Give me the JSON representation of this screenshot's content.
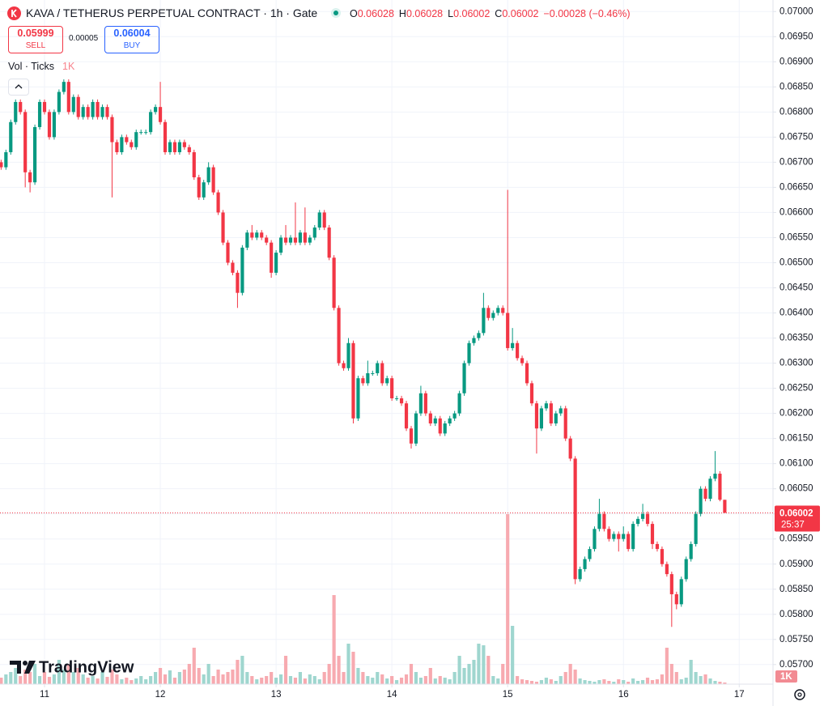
{
  "header": {
    "symbol": "KAVA / TETHERUS PERPETUAL CONTRACT · 1h · Gate",
    "ohlc": [
      {
        "label": "O",
        "value": "0.06028"
      },
      {
        "label": "H",
        "value": "0.06028"
      },
      {
        "label": "L",
        "value": "0.06002"
      },
      {
        "label": "C",
        "value": "0.06002"
      }
    ],
    "change": "−0.00028 (−0.46%)"
  },
  "trade": {
    "sell_price": "0.05999",
    "sell_label": "SELL",
    "spread": "0.00005",
    "buy_price": "0.06004",
    "buy_label": "BUY"
  },
  "indicator": {
    "name": "Vol · Ticks",
    "value": "1K"
  },
  "watermark": "TradingView",
  "chart_data": {
    "type": "candlestick",
    "up_color": "#089981",
    "down_color": "#f23645",
    "volume_up_color": "#9fd6cf",
    "volume_down_color": "#f7aab0",
    "grid": true,
    "x": [
      -9,
      -8,
      -7,
      -6,
      -5,
      -4,
      -3,
      -2,
      -1,
      0,
      1,
      2,
      3,
      4,
      5,
      6,
      7,
      8,
      9,
      10,
      11,
      12,
      13,
      14,
      15,
      16,
      17,
      18,
      19,
      20,
      21,
      22,
      23,
      24,
      25,
      26,
      27,
      28,
      29,
      30,
      31,
      32,
      33,
      34,
      35,
      36,
      37,
      38,
      39,
      40,
      41,
      42,
      43,
      44,
      45,
      46,
      47,
      48,
      49,
      50,
      51,
      52,
      53,
      54,
      55,
      56,
      57,
      58,
      59,
      60,
      61,
      62,
      63,
      64,
      65,
      66,
      67,
      68,
      69,
      70,
      71,
      72,
      73,
      74,
      75,
      76,
      77,
      78,
      79,
      80,
      81,
      82,
      83,
      84,
      85,
      86,
      87,
      88,
      89,
      90,
      91,
      92,
      93,
      94,
      95,
      96,
      97,
      98,
      99,
      100,
      101,
      102,
      103,
      104,
      105,
      106,
      107,
      108,
      109,
      110,
      111,
      112,
      113,
      114,
      115,
      116,
      117,
      118,
      119,
      120,
      121,
      122,
      123,
      124,
      125,
      126,
      127,
      128,
      129,
      130,
      131,
      132,
      133,
      134,
      135,
      136,
      137,
      138,
      139,
      140,
      141
    ],
    "open": [
      0.067,
      0.0669,
      0.0672,
      0.0678,
      0.0682,
      0.068,
      0.0668,
      0.0666,
      0.0677,
      0.0682,
      0.068,
      0.0675,
      0.068,
      0.0684,
      0.0686,
      0.068,
      0.0683,
      0.0679,
      0.0681,
      0.0679,
      0.0682,
      0.0679,
      0.0681,
      0.0679,
      0.0674,
      0.0672,
      0.0675,
      0.0674,
      0.0673,
      0.0676,
      0.0676,
      0.0676,
      0.068,
      0.0681,
      0.0678,
      0.0672,
      0.0674,
      0.0672,
      0.0674,
      0.0673,
      0.0672,
      0.0667,
      0.0663,
      0.0666,
      0.0669,
      0.0664,
      0.066,
      0.0654,
      0.065,
      0.0648,
      0.0644,
      0.0653,
      0.0656,
      0.0655,
      0.0656,
      0.0655,
      0.0654,
      0.0648,
      0.0652,
      0.0655,
      0.0654,
      0.0655,
      0.0654,
      0.0656,
      0.0654,
      0.0655,
      0.0657,
      0.066,
      0.0657,
      0.0651,
      0.0641,
      0.063,
      0.0629,
      0.0634,
      0.0619,
      0.0627,
      0.0626,
      0.0628,
      0.0628,
      0.063,
      0.0626,
      0.0627,
      0.0623,
      0.0623,
      0.0622,
      0.0617,
      0.0614,
      0.062,
      0.0624,
      0.062,
      0.0618,
      0.0619,
      0.0616,
      0.0618,
      0.0619,
      0.062,
      0.0624,
      0.063,
      0.0634,
      0.0635,
      0.0636,
      0.0641,
      0.0639,
      0.064,
      0.0641,
      0.064,
      0.0633,
      0.0634,
      0.0631,
      0.063,
      0.0626,
      0.0622,
      0.0617,
      0.0621,
      0.0622,
      0.0618,
      0.062,
      0.0621,
      0.0615,
      0.0611,
      0.0587,
      0.0589,
      0.0591,
      0.0593,
      0.0597,
      0.06,
      0.0597,
      0.0595,
      0.0596,
      0.0595,
      0.0596,
      0.0593,
      0.0598,
      0.0599,
      0.06,
      0.0598,
      0.0594,
      0.0593,
      0.059,
      0.0588,
      0.0584,
      0.0582,
      0.0587,
      0.0591,
      0.0594,
      0.06,
      0.0605,
      0.0603,
      0.0607,
      0.0608,
      0.06028
    ],
    "high": [
      0.06705,
      0.06725,
      0.06785,
      0.06825,
      0.06825,
      0.06805,
      0.06685,
      0.06775,
      0.06825,
      0.06825,
      0.06805,
      0.06805,
      0.06845,
      0.06865,
      0.06865,
      0.06835,
      0.06835,
      0.06815,
      0.06815,
      0.06825,
      0.06825,
      0.06815,
      0.06815,
      0.06795,
      0.06745,
      0.06755,
      0.06755,
      0.06745,
      0.06765,
      0.06765,
      0.06765,
      0.06805,
      0.06815,
      0.0686,
      0.06785,
      0.06745,
      0.06745,
      0.06745,
      0.06745,
      0.06735,
      0.06725,
      0.06675,
      0.06665,
      0.067,
      0.06695,
      0.06645,
      0.06605,
      0.06545,
      0.06505,
      0.06485,
      0.06535,
      0.06565,
      0.06575,
      0.06565,
      0.06565,
      0.06555,
      0.06545,
      0.06525,
      0.06555,
      0.06575,
      0.06555,
      0.0662,
      0.06565,
      0.0661,
      0.06555,
      0.06575,
      0.06605,
      0.06605,
      0.06575,
      0.06515,
      0.06415,
      0.06305,
      0.0635,
      0.06345,
      0.06275,
      0.06275,
      0.06305,
      0.06285,
      0.06305,
      0.06305,
      0.06275,
      0.06275,
      0.06235,
      0.06235,
      0.06225,
      0.06175,
      0.06205,
      0.06255,
      0.06245,
      0.06205,
      0.06195,
      0.06195,
      0.06185,
      0.06195,
      0.06205,
      0.06245,
      0.06305,
      0.06345,
      0.06355,
      0.06365,
      0.0644,
      0.06415,
      0.06405,
      0.06415,
      0.06415,
      0.06645,
      0.0637,
      0.06345,
      0.06315,
      0.06305,
      0.06265,
      0.06225,
      0.06215,
      0.06225,
      0.06225,
      0.06205,
      0.06215,
      0.06215,
      0.06155,
      0.06115,
      0.05895,
      0.05915,
      0.05935,
      0.05975,
      0.0603,
      0.06005,
      0.05975,
      0.05965,
      0.05965,
      0.05975,
      0.05965,
      0.05985,
      0.05995,
      0.0602,
      0.06005,
      0.05985,
      0.05945,
      0.05935,
      0.05905,
      0.05885,
      0.05845,
      0.05875,
      0.05915,
      0.05945,
      0.06005,
      0.06055,
      0.06055,
      0.06075,
      0.06125,
      0.06085,
      0.06028
    ],
    "low": [
      0.06685,
      0.06685,
      0.06715,
      0.06775,
      0.06795,
      0.0665,
      0.0664,
      0.06655,
      0.06765,
      0.06795,
      0.06745,
      0.06745,
      0.06795,
      0.06835,
      0.06795,
      0.06795,
      0.06785,
      0.06785,
      0.06785,
      0.06785,
      0.06785,
      0.06785,
      0.06785,
      0.0663,
      0.06715,
      0.06715,
      0.06735,
      0.06725,
      0.06725,
      0.06755,
      0.06755,
      0.06755,
      0.06795,
      0.06775,
      0.06715,
      0.06715,
      0.06715,
      0.06715,
      0.06725,
      0.06715,
      0.06665,
      0.06625,
      0.06625,
      0.06655,
      0.06635,
      0.06595,
      0.06535,
      0.06495,
      0.06475,
      0.0641,
      0.06435,
      0.06525,
      0.06545,
      0.06545,
      0.06545,
      0.06535,
      0.0647,
      0.06475,
      0.06515,
      0.06535,
      0.06535,
      0.06535,
      0.06535,
      0.06535,
      0.06535,
      0.06545,
      0.06565,
      0.06565,
      0.06505,
      0.06405,
      0.06295,
      0.06285,
      0.06285,
      0.0618,
      0.06185,
      0.06255,
      0.06255,
      0.06275,
      0.06275,
      0.06255,
      0.06255,
      0.06225,
      0.06225,
      0.06215,
      0.06165,
      0.0613,
      0.06135,
      0.06195,
      0.06195,
      0.06175,
      0.06175,
      0.06155,
      0.06155,
      0.06175,
      0.06185,
      0.06195,
      0.06235,
      0.06295,
      0.06335,
      0.06345,
      0.06355,
      0.06385,
      0.06385,
      0.06395,
      0.06395,
      0.06325,
      0.06325,
      0.06305,
      0.06295,
      0.06255,
      0.06215,
      0.0612,
      0.06165,
      0.06205,
      0.06175,
      0.06175,
      0.06195,
      0.06145,
      0.06105,
      0.0586,
      0.05865,
      0.05885,
      0.05905,
      0.05925,
      0.05965,
      0.05965,
      0.05945,
      0.05945,
      0.05925,
      0.05945,
      0.05925,
      0.05925,
      0.05975,
      0.05985,
      0.05975,
      0.0593,
      0.05925,
      0.05895,
      0.05875,
      0.05775,
      0.0581,
      0.05815,
      0.05865,
      0.05905,
      0.05935,
      0.05995,
      0.06025,
      0.06025,
      0.06065,
      0.06025,
      0.06002
    ],
    "close": [
      0.0669,
      0.0672,
      0.0678,
      0.0682,
      0.068,
      0.0668,
      0.0666,
      0.0677,
      0.0682,
      0.068,
      0.0675,
      0.068,
      0.0684,
      0.0686,
      0.068,
      0.0683,
      0.0679,
      0.0681,
      0.0679,
      0.0682,
      0.0679,
      0.0681,
      0.0679,
      0.0674,
      0.0672,
      0.0675,
      0.0674,
      0.0673,
      0.0676,
      0.0676,
      0.0676,
      0.068,
      0.0681,
      0.0678,
      0.0672,
      0.0674,
      0.0672,
      0.0674,
      0.0673,
      0.0672,
      0.0667,
      0.0663,
      0.0666,
      0.0669,
      0.0664,
      0.066,
      0.0654,
      0.065,
      0.0648,
      0.0644,
      0.0653,
      0.0656,
      0.0655,
      0.0656,
      0.0655,
      0.0654,
      0.0648,
      0.0652,
      0.0655,
      0.0654,
      0.0655,
      0.0654,
      0.0656,
      0.0654,
      0.0655,
      0.0657,
      0.066,
      0.0657,
      0.0651,
      0.0641,
      0.063,
      0.0629,
      0.0634,
      0.0619,
      0.0627,
      0.0626,
      0.0628,
      0.0628,
      0.063,
      0.0626,
      0.0627,
      0.0623,
      0.0623,
      0.0622,
      0.0617,
      0.0614,
      0.062,
      0.0624,
      0.062,
      0.0618,
      0.0619,
      0.0616,
      0.0618,
      0.0619,
      0.062,
      0.0624,
      0.063,
      0.0634,
      0.0635,
      0.0636,
      0.0641,
      0.0639,
      0.064,
      0.0641,
      0.064,
      0.0633,
      0.0634,
      0.0631,
      0.063,
      0.0626,
      0.0622,
      0.0617,
      0.0621,
      0.0622,
      0.0618,
      0.062,
      0.0621,
      0.0615,
      0.0611,
      0.0587,
      0.0589,
      0.0591,
      0.0593,
      0.0597,
      0.06,
      0.0597,
      0.0595,
      0.0596,
      0.0595,
      0.0596,
      0.0593,
      0.0598,
      0.0599,
      0.06,
      0.0598,
      0.0594,
      0.0593,
      0.059,
      0.0588,
      0.0584,
      0.0582,
      0.0587,
      0.0591,
      0.0594,
      0.06,
      0.0605,
      0.0603,
      0.0607,
      0.0608,
      0.06028,
      0.06002
    ],
    "volume": [
      800,
      1200,
      1500,
      2000,
      1000,
      1800,
      1500,
      2500,
      1000,
      1500,
      900,
      1200,
      3000,
      1800,
      2500,
      1500,
      2000,
      1200,
      800,
      1000,
      700,
      1500,
      900,
      1800,
      1200,
      600,
      800,
      500,
      700,
      1000,
      600,
      1000,
      1500,
      2000,
      1200,
      1700,
      800,
      1500,
      1800,
      2500,
      4500,
      2000,
      1200,
      2500,
      1000,
      1800,
      1200,
      1500,
      1800,
      3000,
      3500,
      1500,
      1000,
      600,
      800,
      1000,
      1500,
      800,
      1200,
      3500,
      1000,
      800,
      1500,
      700,
      1200,
      1000,
      600,
      1500,
      2500,
      11000,
      3500,
      1500,
      5000,
      4000,
      2000,
      1500,
      1000,
      800,
      1500,
      1200,
      700,
      1000,
      500,
      800,
      1200,
      2500,
      1500,
      800,
      1000,
      2000,
      700,
      1000,
      800,
      600,
      1500,
      3500,
      2000,
      2500,
      3000,
      5000,
      4800,
      3500,
      1000,
      700,
      2500,
      21000,
      7200,
      1000,
      600,
      500,
      400,
      300,
      500,
      800,
      600,
      400,
      1000,
      1500,
      2500,
      1800,
      700,
      500,
      400,
      300,
      500,
      600,
      400,
      300,
      600,
      500,
      300,
      700,
      400,
      500,
      800,
      500,
      600,
      1200,
      4500,
      2500,
      1500,
      600,
      800,
      3000,
      1500,
      1000,
      1200,
      700,
      400,
      300,
      200
    ],
    "xlim": [
      -9.23,
      151.0
    ],
    "xticks": [
      {
        "value": 0,
        "label": "11"
      },
      {
        "value": 24,
        "label": "12"
      },
      {
        "value": 48,
        "label": "13"
      },
      {
        "value": 72,
        "label": "14"
      },
      {
        "value": 96,
        "label": "15"
      },
      {
        "value": 120,
        "label": "16"
      },
      {
        "value": 144,
        "label": "17"
      }
    ],
    "ylim": [
      0.05661,
      0.07023
    ],
    "yticks": [
      {
        "value": 0.057,
        "label": "0.05700"
      },
      {
        "value": 0.0575,
        "label": "0.05750"
      },
      {
        "value": 0.058,
        "label": "0.05800"
      },
      {
        "value": 0.0585,
        "label": "0.05850"
      },
      {
        "value": 0.059,
        "label": "0.05900"
      },
      {
        "value": 0.0595,
        "label": "0.05950"
      },
      {
        "value": 0.06,
        "label": "0.06000"
      },
      {
        "value": 0.0605,
        "label": "0.06050"
      },
      {
        "value": 0.061,
        "label": "0.06100"
      },
      {
        "value": 0.0615,
        "label": "0.06150"
      },
      {
        "value": 0.062,
        "label": "0.06200"
      },
      {
        "value": 0.0625,
        "label": "0.06250"
      },
      {
        "value": 0.063,
        "label": "0.06300"
      },
      {
        "value": 0.0635,
        "label": "0.06350"
      },
      {
        "value": 0.064,
        "label": "0.06400"
      },
      {
        "value": 0.0645,
        "label": "0.06450"
      },
      {
        "value": 0.065,
        "label": "0.06500"
      },
      {
        "value": 0.0655,
        "label": "0.06550"
      },
      {
        "value": 0.066,
        "label": "0.06600"
      },
      {
        "value": 0.0665,
        "label": "0.06650"
      },
      {
        "value": 0.067,
        "label": "0.06700"
      },
      {
        "value": 0.0675,
        "label": "0.06750"
      },
      {
        "value": 0.068,
        "label": "0.06800"
      },
      {
        "value": 0.0685,
        "label": "0.06850"
      },
      {
        "value": 0.069,
        "label": "0.06900"
      },
      {
        "value": 0.0695,
        "label": "0.06950"
      },
      {
        "value": 0.07,
        "label": "0.07000"
      }
    ],
    "volume_lim": [
      0,
      84500
    ],
    "volume_ticks": [
      {
        "value": 1000,
        "label": "1K"
      }
    ],
    "last_price": 0.06002,
    "countdown": "25:37"
  }
}
